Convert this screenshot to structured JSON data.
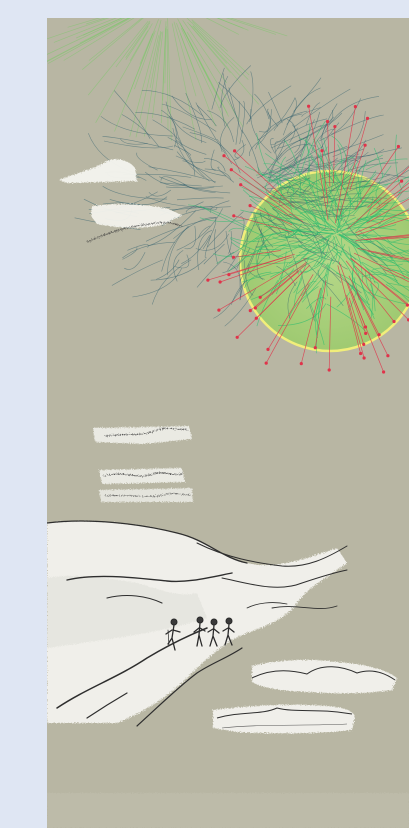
{
  "colors": {
    "page_background": "#dfe6f3",
    "artwork_background": "#b8b6a3",
    "sun_disc": "#a9d47a",
    "sun_ring": "#f1ee7a",
    "scribble_dark": "#2f5e6e",
    "scribble_green": "#1fba6e",
    "ray_red": "#e0334a",
    "ray_green": "#7cc76a",
    "chalk_white": "#f4f4ef",
    "ink": "#2b2b2b"
  },
  "artwork": {
    "elements": [
      "sun-disc",
      "sun-ring",
      "dark-scribble-cloud",
      "green-scribble-cloud",
      "red-ray-burst",
      "green-ray-burst",
      "floating-chalk-clouds",
      "chalk-cliff",
      "four-figures",
      "chalk-islands"
    ]
  }
}
